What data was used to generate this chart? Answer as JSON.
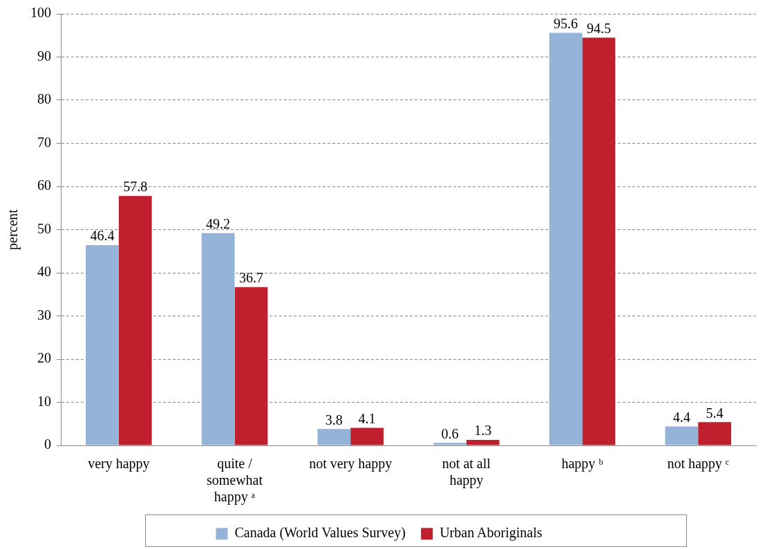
{
  "chart_data": {
    "type": "bar",
    "ylabel": "percent",
    "categories": [
      "very happy",
      "quite /\nsomewhat\nhappy ᵃ",
      "not very happy",
      "not at all\nhappy",
      "happy ᵇ",
      "not happy ᶜ"
    ],
    "series": [
      {
        "name": "Canada (World Values Survey)",
        "color": "#95b3d7",
        "values": [
          46.4,
          49.2,
          3.8,
          0.6,
          95.6,
          4.4
        ]
      },
      {
        "name": "Urban Aboriginals",
        "color": "#c0202e",
        "values": [
          57.8,
          36.7,
          4.1,
          1.3,
          94.5,
          5.4
        ]
      }
    ],
    "ylim": [
      0,
      100
    ],
    "yticks": [
      0,
      10,
      20,
      30,
      40,
      50,
      60,
      70,
      80,
      90,
      100
    ],
    "grid": "y",
    "legend": "bottom",
    "data_labels": true
  }
}
